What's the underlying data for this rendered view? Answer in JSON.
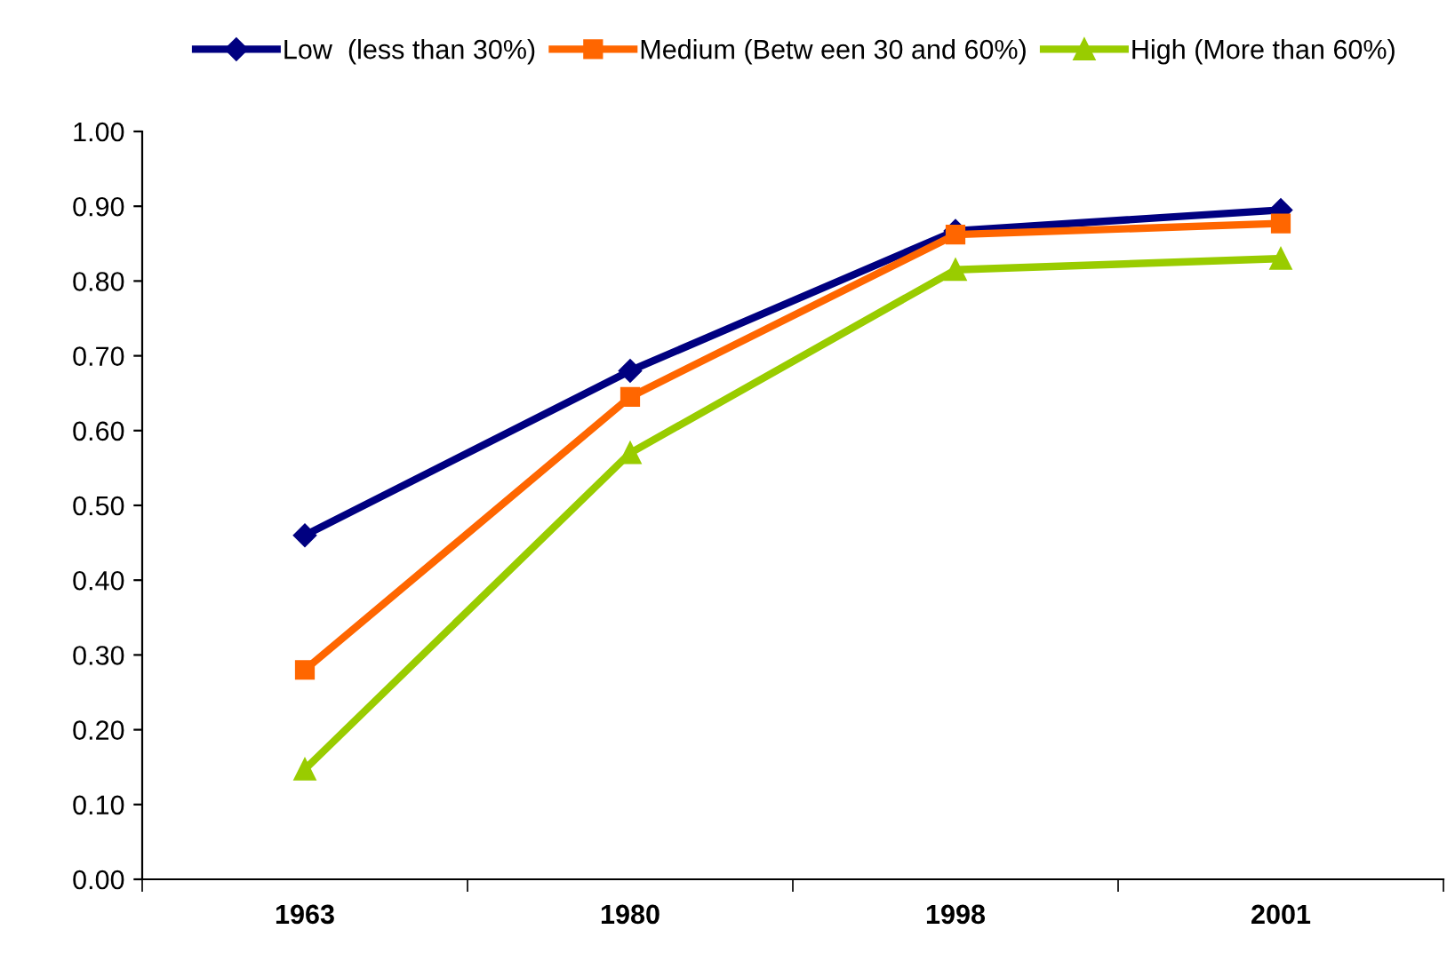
{
  "chart_data": {
    "type": "line",
    "categories": [
      "1963",
      "1980",
      "1998",
      "2001"
    ],
    "series": [
      {
        "name": "Low  (less than 30%)",
        "color": "#000080",
        "marker": "diamond",
        "values": [
          0.46,
          0.68,
          0.867,
          0.895
        ]
      },
      {
        "name": "Medium (Betw een 30 and 60%)",
        "color": "#ff6600",
        "marker": "square",
        "values": [
          0.28,
          0.645,
          0.862,
          0.877
        ]
      },
      {
        "name": "High (More than 60%)",
        "color": "#99cc00",
        "marker": "triangle",
        "values": [
          0.147,
          0.57,
          0.815,
          0.83
        ]
      }
    ],
    "ylim": [
      0,
      1
    ],
    "yticks": [
      {
        "value": 0,
        "label": "0.00"
      },
      {
        "value": 0.1,
        "label": "0.10"
      },
      {
        "value": 0.2,
        "label": "0.20"
      },
      {
        "value": 0.3,
        "label": "0.30"
      },
      {
        "value": 0.4,
        "label": "0.40"
      },
      {
        "value": 0.5,
        "label": "0.50"
      },
      {
        "value": 0.6,
        "label": "0.60"
      },
      {
        "value": 0.7,
        "label": "0.70"
      },
      {
        "value": 0.8,
        "label": "0.80"
      },
      {
        "value": 0.9,
        "label": "0.90"
      },
      {
        "value": 1.0,
        "label": "1.00"
      }
    ],
    "grid": false,
    "legend": "top",
    "line_style": "solid"
  }
}
